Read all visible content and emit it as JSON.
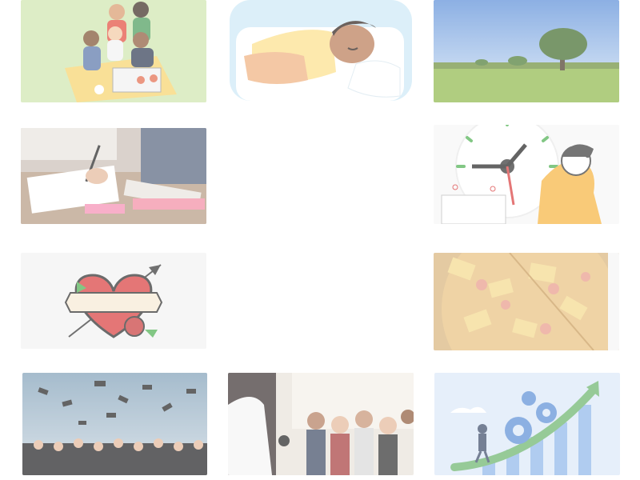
{
  "gallery": {
    "tiles": [
      {
        "id": "friends-picnic",
        "icon": "friends-picnic-illustration",
        "background": "#cfe6ae"
      },
      {
        "id": "person-sleeping",
        "icon": "sleeping-person-illustration",
        "background": "#e7f4fb"
      },
      {
        "id": "tree-meadow",
        "icon": "tree-meadow-photo",
        "background": "#9fc2ee"
      },
      {
        "id": "studying-notebooks",
        "icon": "studying-desk-photo",
        "background": "#d9cfc8"
      },
      {
        "id": "blank-slot-1",
        "icon": "empty-tile",
        "background": "#ffffff"
      },
      {
        "id": "clock-stress",
        "icon": "clock-worried-woman-illustration",
        "background": "#f7f7f7"
      },
      {
        "id": "mom-heart-tattoo",
        "icon": "mom-heart-tattoo-illustration",
        "background": "#f3f3f3"
      },
      {
        "id": "blank-slot-2",
        "icon": "empty-tile",
        "background": "#ffffff"
      },
      {
        "id": "pineapple-pizza",
        "icon": "pizza-photo",
        "background": "#e3c48a"
      },
      {
        "id": "graduation-caps",
        "icon": "graduation-caps-photo",
        "background": "#c9d6e0"
      },
      {
        "id": "presentation-audience",
        "icon": "presentation-audience-photo",
        "background": "#e9e2da"
      },
      {
        "id": "growth-gears",
        "icon": "growth-gears-illustration",
        "background": "#dbe8f8"
      }
    ]
  },
  "colors": {
    "green": "#cfe6ae",
    "sky": "#9fc2ee",
    "pizza": "#e3c48a",
    "accent_green": "#69b36a",
    "accent_orange": "#f6b33e",
    "heart_red": "#d83b3b"
  }
}
